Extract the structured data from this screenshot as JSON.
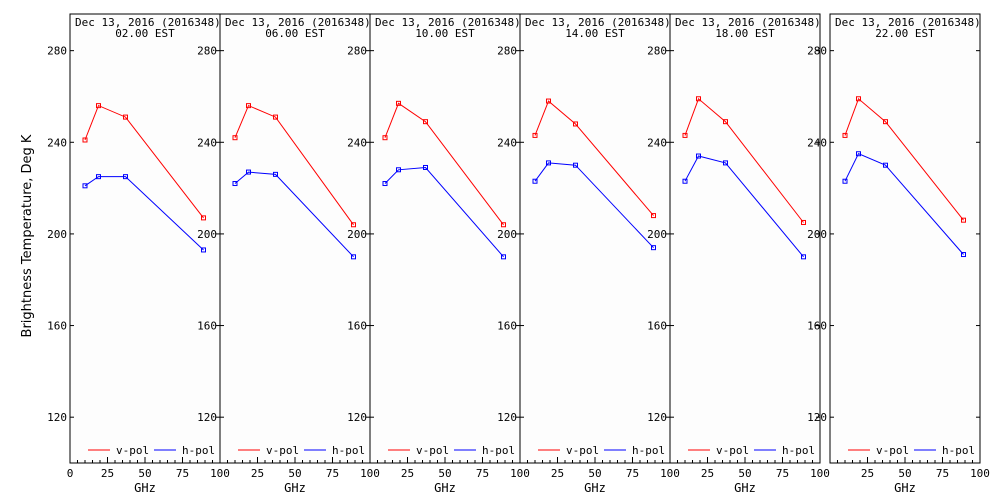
{
  "ylabel": "Brightness Temperature, Deg K",
  "xlabel": "GHz",
  "colors": {
    "v_pol": "#ff0000",
    "h_pol": "#0000ff",
    "axes": "#000000",
    "background": "#fdfdfd"
  },
  "chart_data": [
    {
      "type": "line",
      "title": "Dec 13, 2016 (2016348)",
      "subtitle": "02.00 EST",
      "xlabel": "GHz",
      "ylabel": "Brightness Temperature, Deg K",
      "x": [
        10,
        19,
        37,
        89
      ],
      "series": [
        {
          "name": "v-pol",
          "values": [
            241,
            256,
            251,
            207
          ]
        },
        {
          "name": "h-pol",
          "values": [
            221,
            225,
            225,
            193
          ]
        }
      ],
      "xlim": [
        0,
        100
      ],
      "ylim": [
        100,
        296
      ],
      "xticks": [
        0,
        25,
        50,
        75,
        100
      ],
      "yticks": [
        120,
        160,
        200,
        240,
        280
      ],
      "legend": "bottom"
    },
    {
      "type": "line",
      "title": "Dec 13, 2016 (2016348)",
      "subtitle": "06.00 EST",
      "xlabel": "GHz",
      "x": [
        10,
        19,
        37,
        89
      ],
      "series": [
        {
          "name": "v-pol",
          "values": [
            242,
            256,
            251,
            204
          ]
        },
        {
          "name": "h-pol",
          "values": [
            222,
            227,
            226,
            190
          ]
        }
      ],
      "xlim": [
        0,
        100
      ],
      "ylim": [
        100,
        296
      ],
      "xticks": [
        25,
        50,
        75,
        100
      ],
      "yticks": [
        120,
        160,
        200,
        240,
        280
      ],
      "legend": "bottom"
    },
    {
      "type": "line",
      "title": "Dec 13, 2016 (2016348)",
      "subtitle": "10.00 EST",
      "xlabel": "GHz",
      "x": [
        10,
        19,
        37,
        89
      ],
      "series": [
        {
          "name": "v-pol",
          "values": [
            242,
            257,
            249,
            204
          ]
        },
        {
          "name": "h-pol",
          "values": [
            222,
            228,
            229,
            190
          ]
        }
      ],
      "xlim": [
        0,
        100
      ],
      "ylim": [
        100,
        296
      ],
      "xticks": [
        25,
        50,
        75,
        100
      ],
      "yticks": [
        120,
        160,
        200,
        240,
        280
      ],
      "legend": "bottom"
    },
    {
      "type": "line",
      "title": "Dec 13, 2016 (2016348)",
      "subtitle": "14.00 EST",
      "xlabel": "GHz",
      "x": [
        10,
        19,
        37,
        89
      ],
      "series": [
        {
          "name": "v-pol",
          "values": [
            243,
            258,
            248,
            208
          ]
        },
        {
          "name": "h-pol",
          "values": [
            223,
            231,
            230,
            194
          ]
        }
      ],
      "xlim": [
        0,
        100
      ],
      "ylim": [
        100,
        296
      ],
      "xticks": [
        25,
        50,
        75,
        100
      ],
      "yticks": [
        120,
        160,
        200,
        240,
        280
      ],
      "legend": "bottom"
    },
    {
      "type": "line",
      "title": "Dec 13, 2016 (2016348)",
      "subtitle": "18.00 EST",
      "xlabel": "GHz",
      "x": [
        10,
        19,
        37,
        89
      ],
      "series": [
        {
          "name": "v-pol",
          "values": [
            243,
            259,
            249,
            205
          ]
        },
        {
          "name": "h-pol",
          "values": [
            223,
            234,
            231,
            190
          ]
        }
      ],
      "xlim": [
        0,
        100
      ],
      "ylim": [
        100,
        296
      ],
      "xticks": [
        25,
        50,
        75,
        100
      ],
      "yticks": [
        120,
        160,
        200,
        240,
        280
      ],
      "legend": "bottom"
    },
    {
      "type": "line",
      "title": "Dec 13, 2016 (2016348)",
      "subtitle": "22.00 EST",
      "xlabel": "GHz",
      "x": [
        10,
        19,
        37,
        89
      ],
      "series": [
        {
          "name": "v-pol",
          "values": [
            243,
            259,
            249,
            206
          ]
        },
        {
          "name": "h-pol",
          "values": [
            223,
            235,
            230,
            191
          ]
        }
      ],
      "xlim": [
        0,
        100
      ],
      "ylim": [
        100,
        296
      ],
      "xticks": [
        25,
        50,
        75,
        100
      ],
      "yticks": [
        120,
        160,
        200,
        240,
        280
      ],
      "legend": "bottom"
    }
  ]
}
